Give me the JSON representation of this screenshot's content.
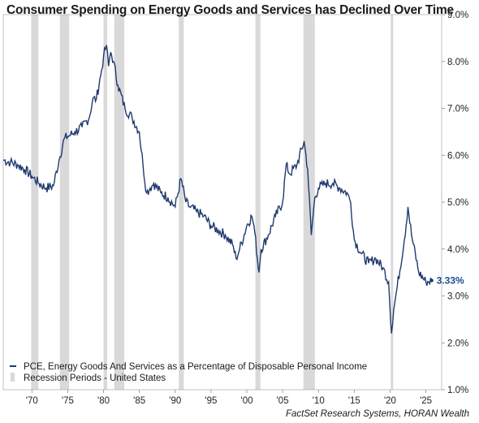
{
  "chart_data": {
    "type": "line",
    "title": "Consumer Spending on Energy Goods and Services has Declined Over Time",
    "xlim": [
      1966.0,
      2027.2
    ],
    "ylim": [
      1.0,
      9.0
    ],
    "y_ticks": [
      1.0,
      2.0,
      3.0,
      4.0,
      5.0,
      6.0,
      7.0,
      8.0,
      9.0
    ],
    "y_tick_labels": [
      "1.0%",
      "2.0%",
      "3.0%",
      "4.0%",
      "5.0%",
      "6.0%",
      "7.0%",
      "8.0%",
      "9.0%"
    ],
    "x_ticks": [
      1970,
      1975,
      1980,
      1985,
      1990,
      1995,
      2000,
      2005,
      2010,
      2015,
      2020,
      2025
    ],
    "x_tick_labels": [
      "'70",
      "'75",
      "'80",
      "'85",
      "'90",
      "'95",
      "'00",
      "'05",
      "'10",
      "'15",
      "'20",
      "'25"
    ],
    "grid": false,
    "legend_position": "bottom-left",
    "series": [
      {
        "name": "PCE, Energy Goods And Services as a Percentage of Disposable Personal Income",
        "color": "#1f3a6e",
        "x": [
          1966.0,
          1967.0,
          1968.0,
          1969.0,
          1970.0,
          1971.0,
          1972.0,
          1973.0,
          1973.8,
          1974.5,
          1975.0,
          1976.0,
          1977.0,
          1978.0,
          1978.5,
          1979.0,
          1979.6,
          1980.0,
          1980.4,
          1980.7,
          1981.0,
          1981.4,
          1982.0,
          1983.0,
          1984.0,
          1985.0,
          1985.5,
          1986.0,
          1986.5,
          1987.0,
          1988.0,
          1989.0,
          1990.0,
          1990.8,
          1991.5,
          1992.0,
          1993.0,
          1994.0,
          1995.0,
          1996.0,
          1997.0,
          1998.0,
          1998.5,
          1999.0,
          2000.0,
          2000.7,
          2001.0,
          2001.7,
          2002.0,
          2003.0,
          2004.0,
          2005.0,
          2005.5,
          2006.0,
          2007.0,
          2008.0,
          2008.5,
          2009.0,
          2009.5,
          2010.0,
          2011.0,
          2012.0,
          2013.0,
          2014.0,
          2014.5,
          2015.0,
          2016.0,
          2017.0,
          2018.0,
          2019.0,
          2019.8,
          2020.2,
          2020.5,
          2021.0,
          2022.0,
          2022.5,
          2023.0,
          2024.0,
          2025.0,
          2025.8
        ],
        "y": [
          5.9,
          5.85,
          5.8,
          5.7,
          5.55,
          5.4,
          5.3,
          5.35,
          5.9,
          6.35,
          6.4,
          6.5,
          6.6,
          6.8,
          7.2,
          7.2,
          7.7,
          8.1,
          8.35,
          7.9,
          8.2,
          8.0,
          7.5,
          7.0,
          6.8,
          6.5,
          5.8,
          5.2,
          5.3,
          5.4,
          5.2,
          5.1,
          4.9,
          5.5,
          5.0,
          4.9,
          4.8,
          4.7,
          4.5,
          4.4,
          4.3,
          4.1,
          3.8,
          4.0,
          4.5,
          4.7,
          4.5,
          3.5,
          4.0,
          4.3,
          4.7,
          5.0,
          5.8,
          5.6,
          5.8,
          6.3,
          5.7,
          4.3,
          5.1,
          5.3,
          5.4,
          5.4,
          5.3,
          5.2,
          5.0,
          4.2,
          3.9,
          3.7,
          3.8,
          3.6,
          3.3,
          2.2,
          2.7,
          3.2,
          4.2,
          4.9,
          4.3,
          3.5,
          3.3,
          3.33
        ]
      }
    ],
    "recession_periods": [
      [
        1969.9,
        1970.9
      ],
      [
        1973.9,
        1975.2
      ],
      [
        1980.0,
        1980.5
      ],
      [
        1981.5,
        1982.9
      ],
      [
        1990.5,
        1991.2
      ],
      [
        2001.2,
        2001.9
      ],
      [
        2007.9,
        2009.5
      ],
      [
        2020.1,
        2020.4
      ]
    ],
    "recession_label": "Recession Periods - United States",
    "end_label": "3.33%",
    "source": "FactSet Research Systems, HORAN Wealth"
  },
  "colors": {
    "line": "#1f3a6e",
    "recession": "#d9d9d9",
    "axis": "#888888"
  }
}
